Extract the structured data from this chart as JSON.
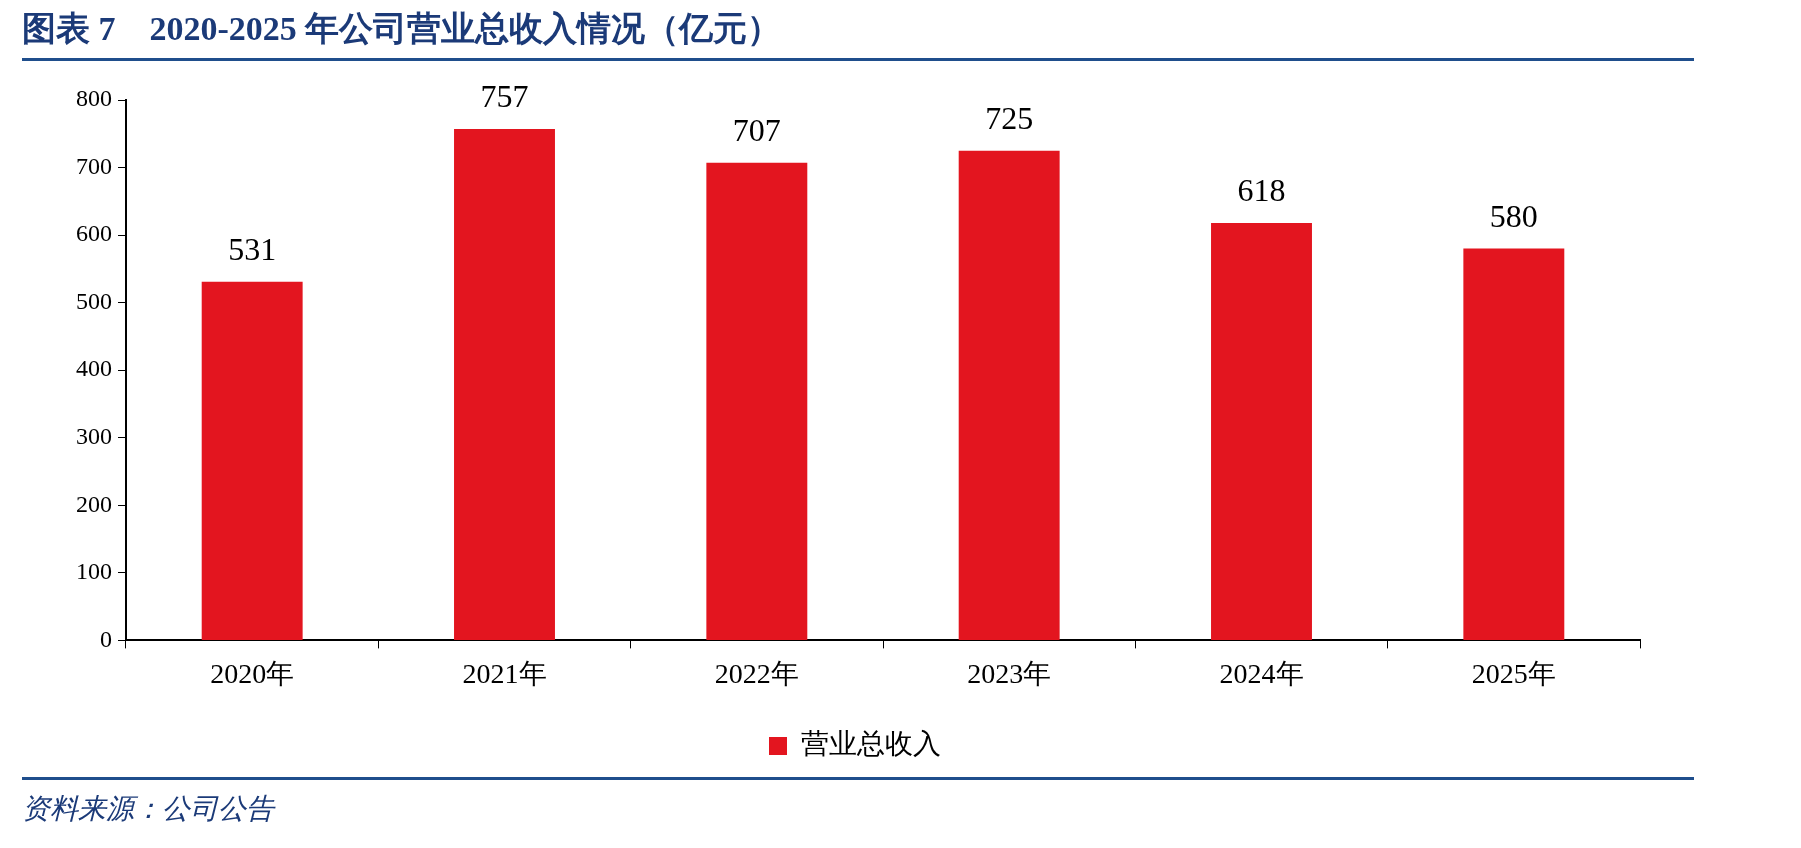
{
  "chart_data": {
    "type": "bar",
    "title": "图表 7　2020-2025 年公司营业总收入情况（亿元）",
    "categories": [
      "2020年",
      "2021年",
      "2022年",
      "2023年",
      "2024年",
      "2025年"
    ],
    "series": [
      {
        "name": "营业总收入",
        "color": "#e3151f",
        "values": [
          531,
          757,
          707,
          725,
          618,
          580
        ]
      }
    ],
    "ylim": [
      0,
      800
    ],
    "yticks": [
      0,
      100,
      200,
      300,
      400,
      500,
      600,
      700,
      800
    ],
    "grid": false,
    "legend": "bottom",
    "data_labels": true,
    "annotations": [
      "资料来源：公司公告"
    ]
  }
}
